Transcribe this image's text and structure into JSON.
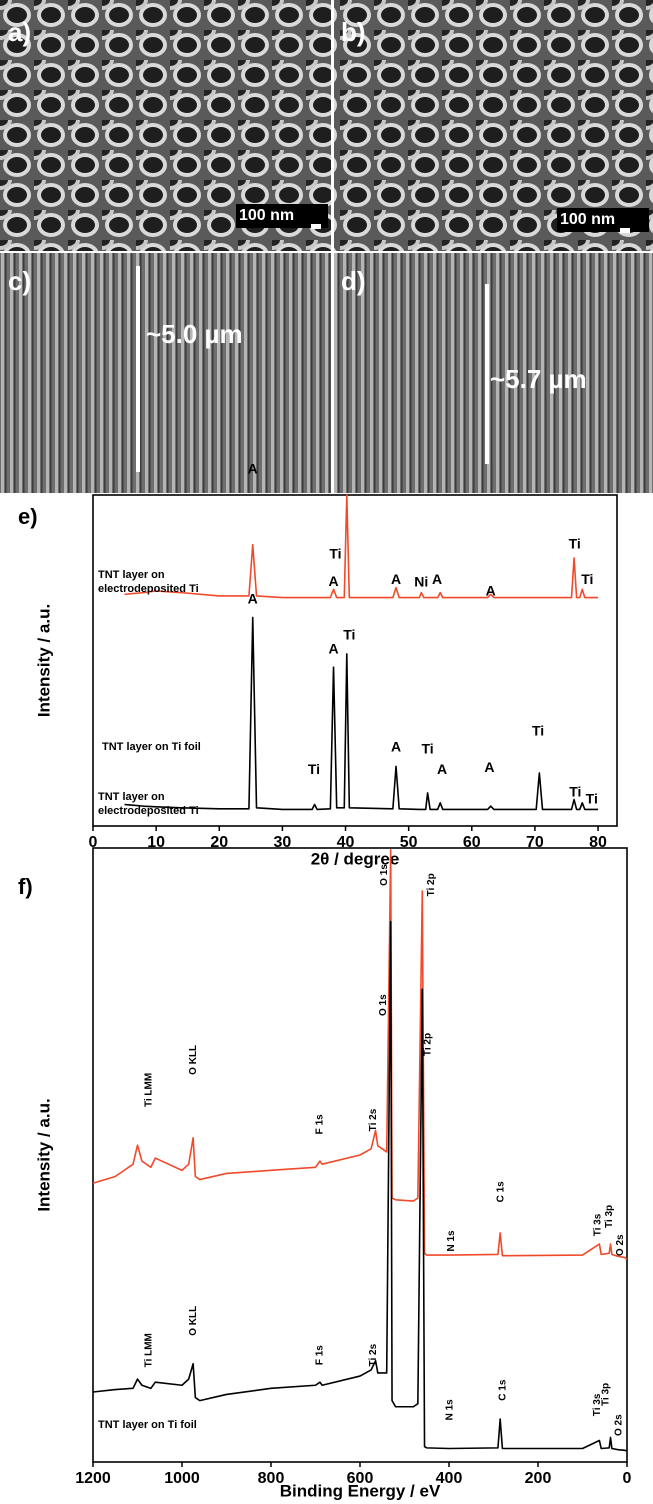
{
  "panels": [
    {
      "label": "a)",
      "scale": "100 nm"
    },
    {
      "label": "b)",
      "scale": "100 nm"
    },
    {
      "label": "c)",
      "scale": "~5.0 µm"
    },
    {
      "label": "d)",
      "scale": "~5.7 µm"
    }
  ],
  "chart_data": [
    {
      "type": "line",
      "label": "e)",
      "xlabel": "2θ / degree",
      "ylabel": "Intensity / a.u.",
      "xlim": [
        0,
        83
      ],
      "xticks": [
        0,
        10,
        20,
        30,
        40,
        50,
        60,
        70,
        80
      ],
      "ylim": [
        0,
        100
      ],
      "annotation_rotation": 0,
      "x": [
        5,
        8,
        10,
        14,
        20,
        24.7,
        25.3,
        25.9,
        30,
        34.7,
        35.1,
        35.5,
        37.6,
        38.1,
        38.6,
        39.8,
        40.2,
        40.6,
        47.5,
        48,
        48.5,
        51.7,
        52,
        52.4,
        52.7,
        53,
        53.4,
        54.6,
        55,
        55.4,
        62.5,
        63,
        63.5,
        70.2,
        70.7,
        71.2,
        75.8,
        76.2,
        76.6,
        77.1,
        77.5,
        77.9,
        80
      ],
      "series": [
        {
          "name": "TNT layer on electrodeposited Ti",
          "color": "#f04a2a",
          "values": [
            70,
            70.5,
            71,
            70.5,
            69.5,
            69.5,
            85,
            69.5,
            69,
            69,
            69,
            69,
            69,
            71.5,
            69,
            69,
            100,
            69,
            69,
            72,
            69,
            69,
            70.5,
            69,
            69,
            69,
            69,
            69,
            70.5,
            69,
            69,
            70,
            69,
            69,
            69,
            69,
            69,
            81,
            69,
            69,
            71.5,
            69,
            69
          ],
          "annotations": [
            {
              "text": "A",
              "x": 25.3,
              "y": 107.6
            },
            {
              "text": "A",
              "x": 38.1,
              "y": 73.7
            },
            {
              "text": "Ti",
              "x": 38.4,
              "y": 81.9
            },
            {
              "text": "A",
              "x": 48,
              "y": 74.3
            },
            {
              "text": "Ni",
              "x": 52,
              "y": 73.4
            },
            {
              "text": "A",
              "x": 54.5,
              "y": 74.3
            },
            {
              "text": "A",
              "x": 63,
              "y": 70.7
            },
            {
              "text": "Ti",
              "x": 76.3,
              "y": 84.9
            },
            {
              "text": "Ti",
              "x": 78.3,
              "y": 74.3
            }
          ]
        },
        {
          "name": "TNT layer on Ti foil",
          "color": "#000000",
          "values": [
            6.5,
            6,
            5.8,
            5.5,
            5.2,
            5.2,
            63,
            5.5,
            5,
            5,
            6.5,
            5,
            5.2,
            48,
            5.5,
            5.5,
            52,
            5.5,
            5.2,
            18,
            5.2,
            5,
            5,
            5,
            5,
            10,
            5,
            5,
            7,
            5,
            5,
            6,
            5,
            5,
            16,
            5,
            5,
            8,
            5,
            5,
            7,
            5,
            5
          ],
          "annotations": [
            {
              "text": "A",
              "x": 25.3,
              "y": 68.3
            },
            {
              "text": "Ti",
              "x": 35,
              "y": 16.9
            },
            {
              "text": "A",
              "x": 38.1,
              "y": 53.2
            },
            {
              "text": "Ti",
              "x": 40.6,
              "y": 57.4
            },
            {
              "text": "A",
              "x": 48,
              "y": 23.6
            },
            {
              "text": "Ti",
              "x": 53,
              "y": 23
            },
            {
              "text": "A",
              "x": 55.3,
              "y": 16.9
            },
            {
              "text": "A",
              "x": 62.8,
              "y": 17.5
            },
            {
              "text": "Ti",
              "x": 70.5,
              "y": 28.4
            },
            {
              "text": "Ti",
              "x": 76.4,
              "y": 10
            },
            {
              "text": "Ti",
              "x": 79,
              "y": 7.9
            }
          ]
        }
      ]
    },
    {
      "type": "line",
      "label": "f)",
      "xlabel": "Binding Energy / eV",
      "ylabel": "Intensity / a.u.",
      "xlim": [
        1200,
        0
      ],
      "xticks": [
        1200,
        1000,
        800,
        600,
        400,
        200,
        0
      ],
      "ylim": [
        0,
        100
      ],
      "annotation_rotation": -90,
      "x": [
        1200,
        1150,
        1110,
        1100,
        1090,
        1070,
        1060,
        1000,
        985,
        975,
        970,
        960,
        900,
        800,
        700,
        690,
        685,
        600,
        575,
        565,
        560,
        540,
        531,
        528,
        520,
        480,
        470,
        460,
        455,
        450,
        400,
        290,
        285,
        280,
        100,
        62,
        58,
        40,
        37,
        34,
        20,
        5,
        0
      ],
      "series": [
        {
          "name": "TNT layer on electrodeposited Ti",
          "color": "#f04a2a",
          "values": [
            45.4,
            46.5,
            48.5,
            51.6,
            49,
            48,
            49.5,
            47.5,
            48.5,
            52.8,
            46.5,
            46,
            47,
            47.5,
            48,
            49,
            48.5,
            50,
            51,
            54,
            51.5,
            50.5,
            99.7,
            43,
            42.7,
            42.5,
            43,
            93,
            34,
            33.7,
            33.7,
            33.8,
            37.3,
            33.6,
            33.7,
            35.5,
            33.8,
            34,
            35.5,
            33.8,
            33.5,
            33.3,
            33
          ],
          "annotations": [
            {
              "text": "Ti LMM",
              "x": 1075,
              "y": 60.6
            },
            {
              "text": "O KLL",
              "x": 975,
              "y": 65.5
            },
            {
              "text": "F 1s",
              "x": 690,
              "y": 55
            },
            {
              "text": "Ti 2s",
              "x": 570,
              "y": 55.7
            },
            {
              "text": "O 1s",
              "x": 545,
              "y": 95.6
            },
            {
              "text": "Ti 2p",
              "x": 440,
              "y": 94
            },
            {
              "text": "N 1s",
              "x": 395,
              "y": 36
            },
            {
              "text": "C 1s",
              "x": 283,
              "y": 44
            },
            {
              "text": "Ti 3s",
              "x": 65,
              "y": 38.6
            },
            {
              "text": "Ti 3p",
              "x": 40,
              "y": 40
            },
            {
              "text": "O 2s",
              "x": 15,
              "y": 35.3
            }
          ]
        },
        {
          "name": "TNT layer on Ti foil",
          "color": "#000000",
          "values": [
            11.4,
            11.8,
            12,
            13.5,
            12.5,
            12,
            13,
            12.5,
            13.5,
            16,
            10.5,
            10,
            11,
            12,
            12.5,
            13,
            12.5,
            14,
            15,
            16.5,
            14.5,
            14.5,
            88,
            10,
            9,
            9,
            9.5,
            77,
            2.5,
            2.3,
            2.2,
            2.3,
            7,
            2.2,
            2.2,
            3.5,
            2.2,
            2.3,
            4,
            2.2,
            2,
            1.9,
            1.8
          ],
          "annotations": [
            {
              "text": "Ti LMM",
              "x": 1075,
              "y": 18.2
            },
            {
              "text": "O KLL",
              "x": 975,
              "y": 23
            },
            {
              "text": "F 1s",
              "x": 690,
              "y": 17.4
            },
            {
              "text": "Ti 2s",
              "x": 570,
              "y": 17.4
            },
            {
              "text": "O 1s",
              "x": 548,
              "y": 74.4
            },
            {
              "text": "Ti 2p",
              "x": 447,
              "y": 68
            },
            {
              "text": "N 1s",
              "x": 398,
              "y": 8.5
            },
            {
              "text": "C 1s",
              "x": 279,
              "y": 11.7
            },
            {
              "text": "Ti 3s",
              "x": 67,
              "y": 9.3
            },
            {
              "text": "Ti 3p",
              "x": 47,
              "y": 11
            },
            {
              "text": "O 2s",
              "x": 18,
              "y": 6
            }
          ]
        }
      ]
    }
  ]
}
